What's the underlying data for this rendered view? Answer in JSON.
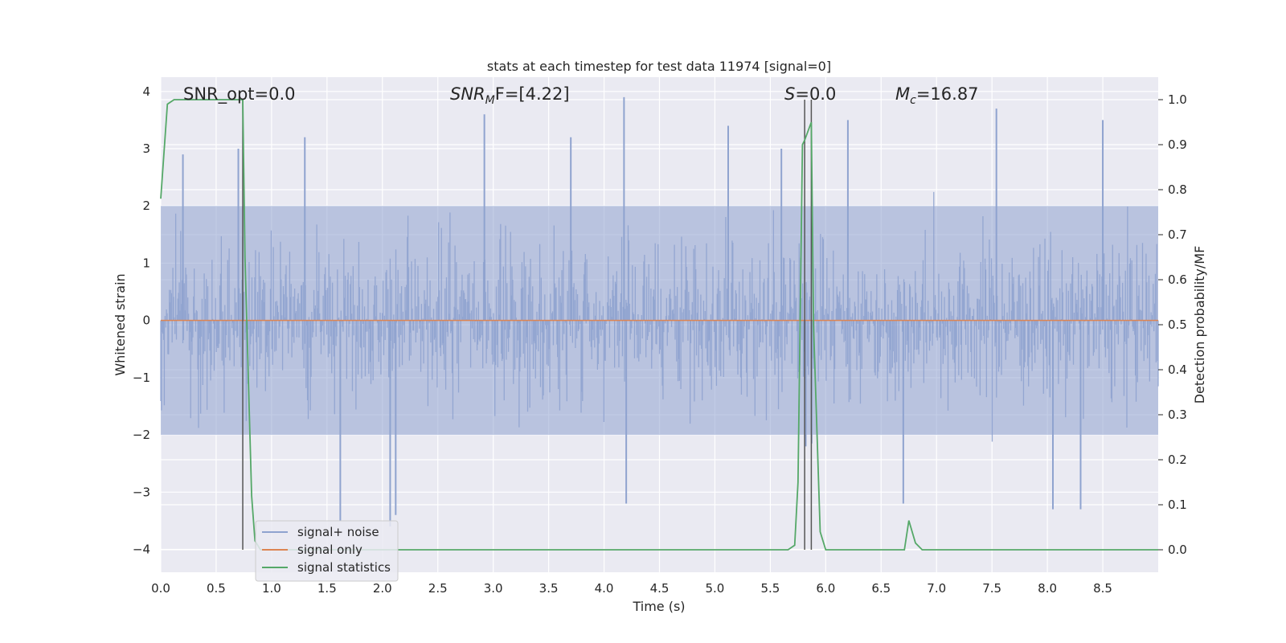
{
  "chart_data": {
    "type": "line",
    "title": "stats at each timestep for test data 11974 [signal=0]",
    "xlabel": "Time (s)",
    "ylabel": "Whitened strain",
    "y2label": "Detection probability/MF",
    "xlim": [
      0.0,
      9.0
    ],
    "ylim": [
      -4.4,
      4.25
    ],
    "y2lim": [
      -0.05,
      1.05
    ],
    "xticks": [
      "0.0",
      "0.5",
      "1.0",
      "1.5",
      "2.0",
      "2.5",
      "3.0",
      "3.5",
      "4.0",
      "4.5",
      "5.0",
      "5.5",
      "6.0",
      "6.5",
      "7.0",
      "7.5",
      "8.0",
      "8.5"
    ],
    "yticks": [
      "4",
      "3",
      "2",
      "1",
      "0",
      "−1",
      "−2",
      "−3",
      "−4"
    ],
    "y2ticks": [
      "1.0",
      "0.9",
      "0.8",
      "0.7",
      "0.6",
      "0.5",
      "0.4",
      "0.3",
      "0.2",
      "0.1",
      "0.0"
    ],
    "grid": true,
    "legend_position": "lower-left",
    "annotations": {
      "snr_opt": "SNR_opt=0.0",
      "snr_mf_main": "SNR",
      "snr_mf_sub": "M",
      "snr_mf_tail": "F=[4.22]",
      "s_main": "S",
      "s_tail": "=0.0",
      "mc_main": "M",
      "mc_sub": "c",
      "mc_tail": "=16.87"
    },
    "vlines_x": [
      0.74,
      5.81,
      5.87
    ],
    "vlines_color": "#555555",
    "series": [
      {
        "name": "signal+ noise",
        "color": "#8fa3cf",
        "axis": "left",
        "description_envelope": [
          -2.0,
          2.0
        ],
        "peaks": [
          [
            0.2,
            2.9
          ],
          [
            0.7,
            3.0
          ],
          [
            1.3,
            3.2
          ],
          [
            1.62,
            -3.5
          ],
          [
            2.07,
            -3.6
          ],
          [
            2.12,
            -3.4
          ],
          [
            2.92,
            3.6
          ],
          [
            3.7,
            3.2
          ],
          [
            4.18,
            3.9
          ],
          [
            4.2,
            -3.2
          ],
          [
            5.12,
            3.4
          ],
          [
            5.6,
            3.0
          ],
          [
            5.82,
            -2.2
          ],
          [
            6.2,
            3.5
          ],
          [
            6.7,
            -3.2
          ],
          [
            7.54,
            3.7
          ],
          [
            8.05,
            -3.3
          ],
          [
            8.3,
            -3.3
          ],
          [
            8.5,
            3.5
          ]
        ]
      },
      {
        "name": "signal only",
        "color": "#dd8452",
        "axis": "left",
        "constant": 0.0
      },
      {
        "name": "signal statistics",
        "color": "#55a868",
        "axis": "right",
        "x": [
          0.0,
          0.06,
          0.12,
          0.2,
          0.74,
          0.76,
          0.82,
          0.85,
          0.9,
          5.6,
          5.66,
          5.72,
          5.75,
          5.79,
          5.81,
          5.87,
          5.89,
          5.95,
          6.0,
          6.67,
          6.71,
          6.75,
          6.81,
          6.87,
          9.0
        ],
        "y": [
          0.78,
          0.99,
          1.0,
          1.0,
          1.0,
          0.65,
          0.12,
          0.02,
          0.0,
          0.0,
          0.0,
          0.01,
          0.15,
          0.9,
          0.91,
          0.95,
          0.5,
          0.04,
          0.0,
          0.0,
          0.0,
          0.065,
          0.015,
          0.0,
          0.0
        ]
      }
    ]
  }
}
